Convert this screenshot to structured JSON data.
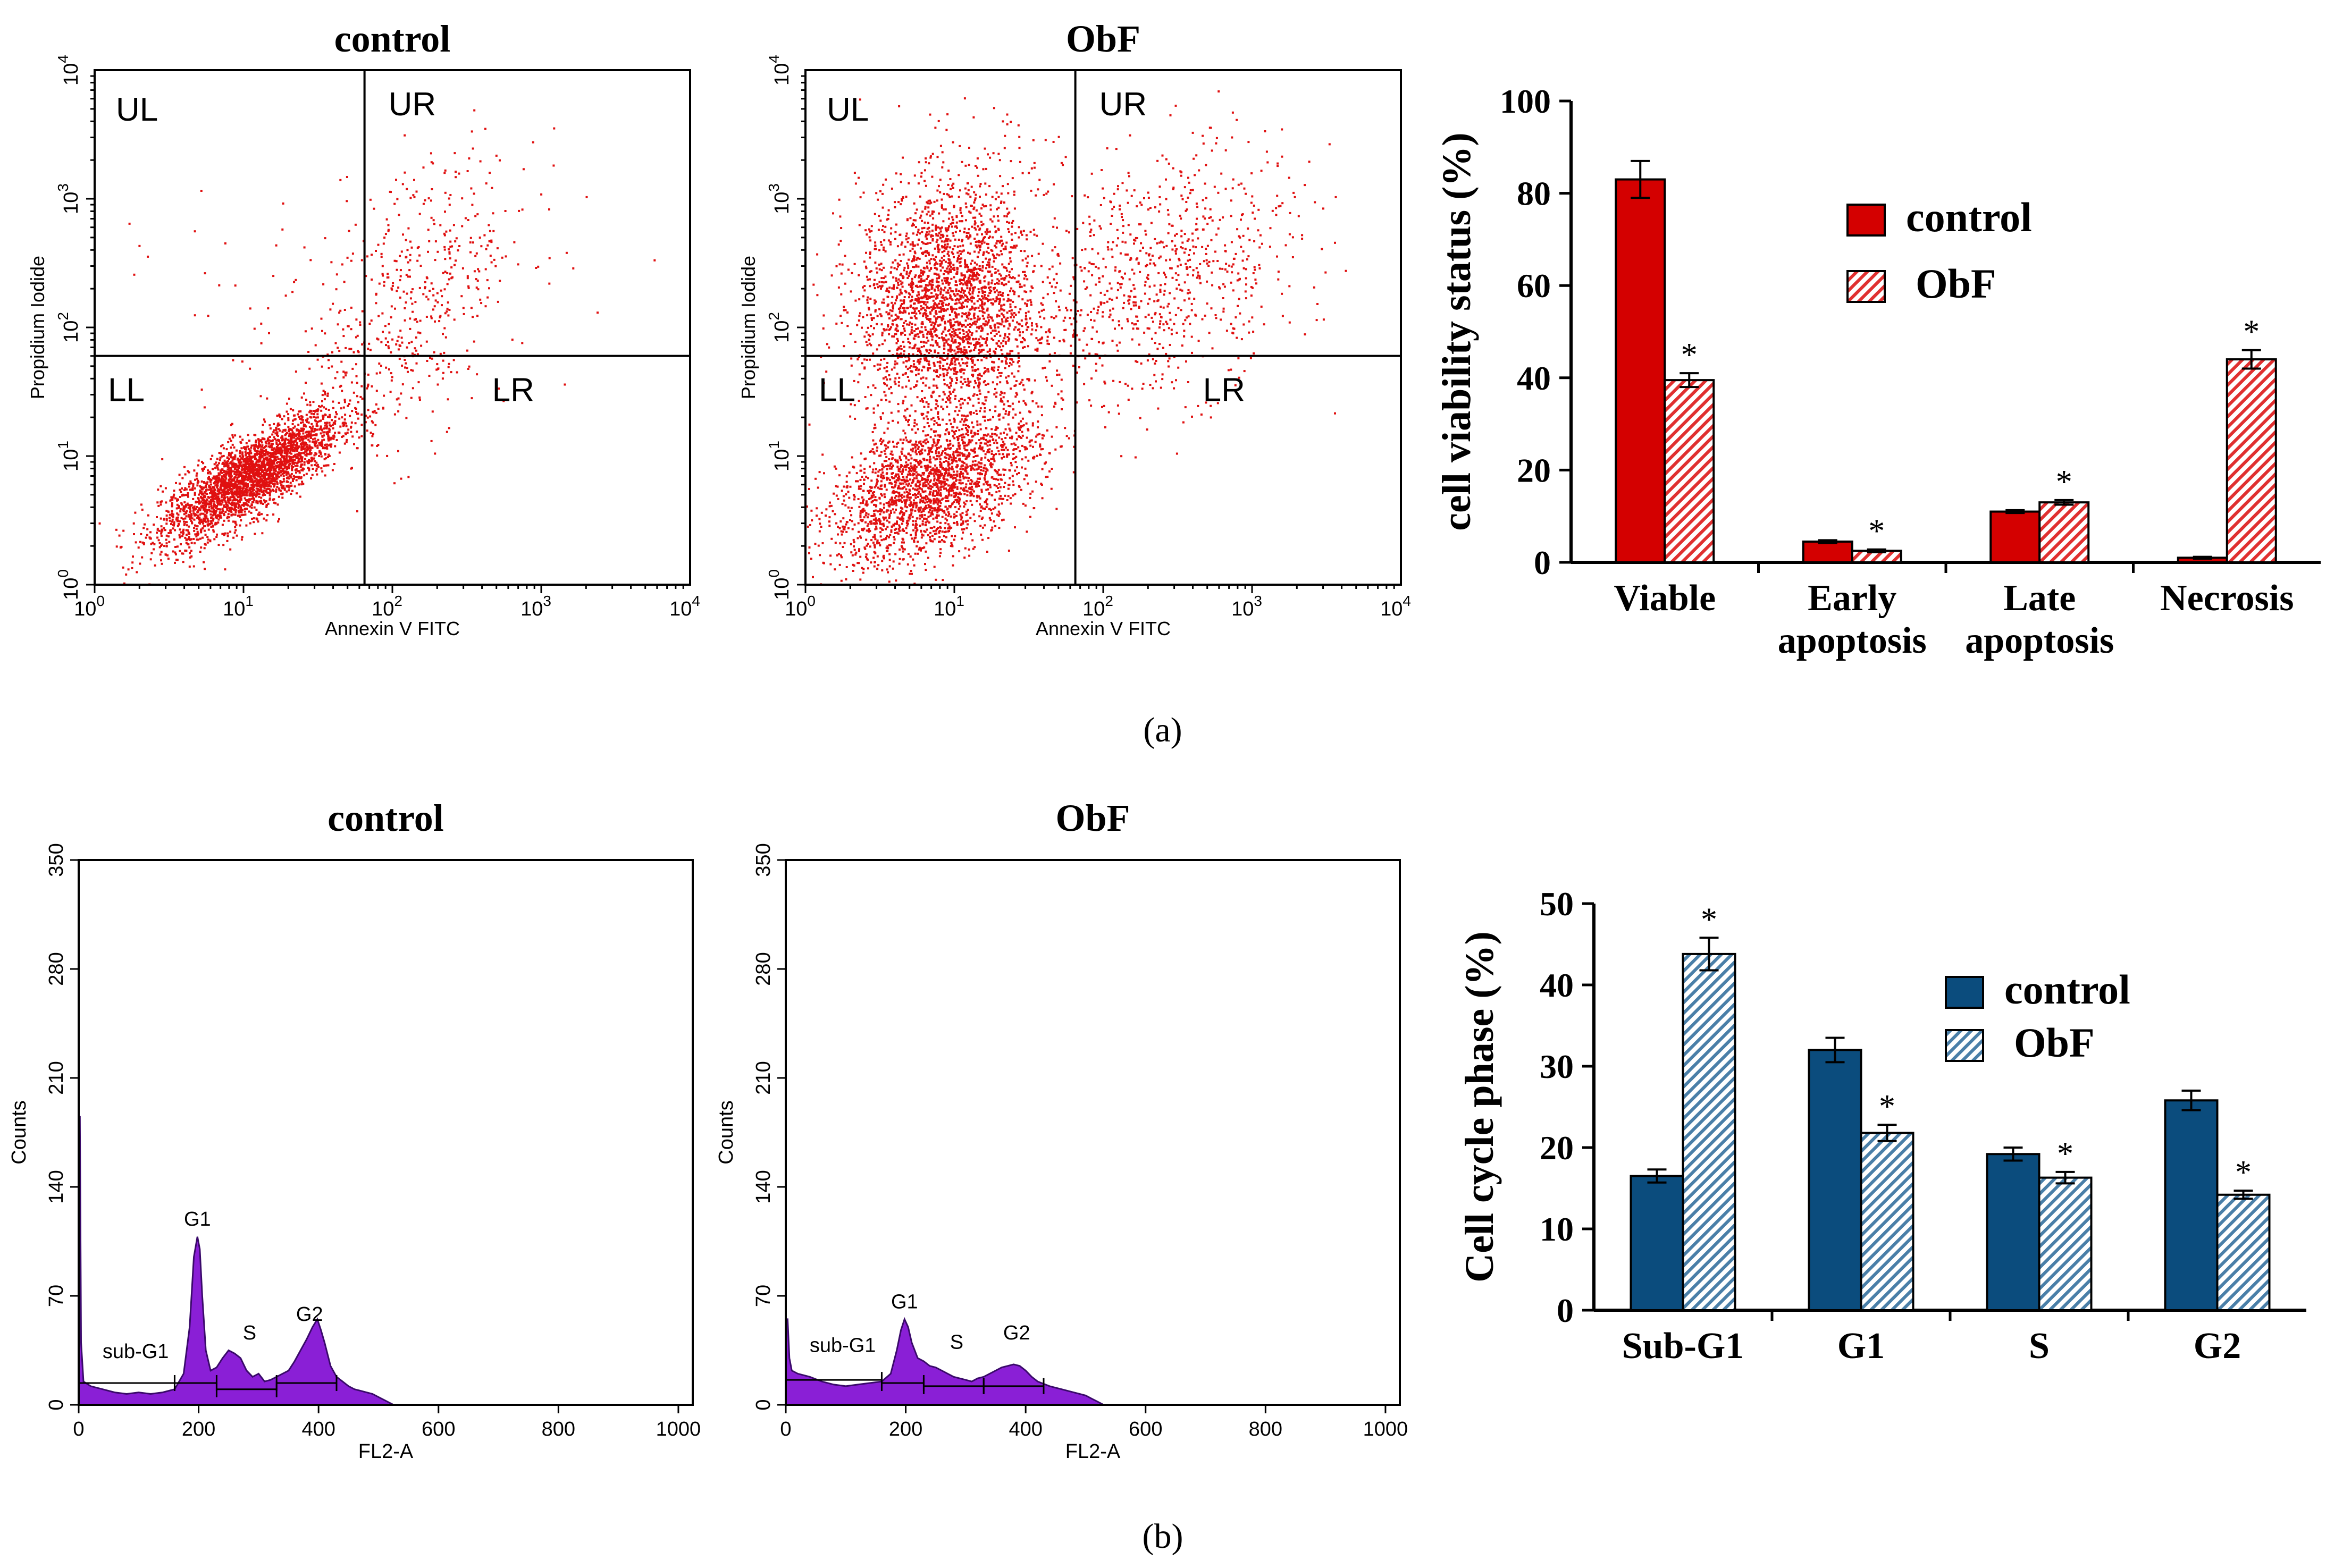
{
  "colors": {
    "scatter_dot": "#e01010",
    "control_red": "#d40000",
    "obf_red_stripe": "#e03030",
    "hist_fill": "#8a1fd6",
    "hist_stroke": "#3a0a6a",
    "control_blue": "#0b4c7d",
    "obf_blue_stripe": "#4a7fa8"
  },
  "panel_labels": {
    "a": "(a)",
    "b": "(b)"
  },
  "chart_data": [
    {
      "id": "flow-control",
      "type": "scatter",
      "title": "control",
      "xlabel": "Annexin V FITC",
      "ylabel": "Propidium Iodide",
      "xscale": "log",
      "yscale": "log",
      "xlim": [
        1,
        10000
      ],
      "ylim": [
        1,
        10000
      ],
      "x_ticks": [
        {
          "base": "10",
          "exp": "0"
        },
        {
          "base": "10",
          "exp": "1"
        },
        {
          "base": "10",
          "exp": "2"
        },
        {
          "base": "10",
          "exp": "3"
        },
        {
          "base": "10",
          "exp": "4"
        }
      ],
      "y_ticks": [
        {
          "base": "10",
          "exp": "0"
        },
        {
          "base": "10",
          "exp": "1"
        },
        {
          "base": "10",
          "exp": "2"
        },
        {
          "base": "10",
          "exp": "3"
        },
        {
          "base": "10",
          "exp": "4"
        }
      ],
      "gate": {
        "x": 65,
        "y": 60
      },
      "quadrants": [
        "UL",
        "UR",
        "LL",
        "LR"
      ],
      "clusters": [
        {
          "cx": 11,
          "cy": 7,
          "sx": 0.3,
          "sy": 0.25,
          "n": 3000,
          "corr": 0.8
        },
        {
          "cx": 180,
          "cy": 350,
          "sx": 0.35,
          "sy": 0.4,
          "n": 300,
          "corr": 0.2
        },
        {
          "cx": 80,
          "cy": 50,
          "sx": 0.35,
          "sy": 0.4,
          "n": 250,
          "corr": 0.3
        },
        {
          "cx": 12,
          "cy": 180,
          "sx": 0.4,
          "sy": 0.4,
          "n": 30,
          "corr": 0
        }
      ]
    },
    {
      "id": "flow-obf",
      "type": "scatter",
      "title": "ObF",
      "xlabel": "Annexin V FITC",
      "ylabel": "Propidium Iodide",
      "xscale": "log",
      "yscale": "log",
      "xlim": [
        1,
        10000
      ],
      "ylim": [
        1,
        10000
      ],
      "x_ticks": [
        {
          "base": "10",
          "exp": "0"
        },
        {
          "base": "10",
          "exp": "1"
        },
        {
          "base": "10",
          "exp": "2"
        },
        {
          "base": "10",
          "exp": "3"
        },
        {
          "base": "10",
          "exp": "4"
        }
      ],
      "y_ticks": [
        {
          "base": "10",
          "exp": "0"
        },
        {
          "base": "10",
          "exp": "1"
        },
        {
          "base": "10",
          "exp": "2"
        },
        {
          "base": "10",
          "exp": "3"
        },
        {
          "base": "10",
          "exp": "4"
        }
      ],
      "gate": {
        "x": 65,
        "y": 60
      },
      "quadrants": [
        "UL",
        "UR",
        "LL",
        "LR"
      ],
      "clusters": [
        {
          "cx": 7,
          "cy": 6,
          "sx": 0.35,
          "sy": 0.3,
          "n": 2200,
          "corr": 0.5
        },
        {
          "cx": 9,
          "cy": 150,
          "sx": 0.3,
          "sy": 0.45,
          "n": 2600,
          "corr": 0
        },
        {
          "cx": 250,
          "cy": 250,
          "sx": 0.45,
          "sy": 0.5,
          "n": 800,
          "corr": 0.3
        },
        {
          "cx": 15,
          "cy": 1800,
          "sx": 0.3,
          "sy": 0.3,
          "n": 80,
          "corr": 0
        }
      ]
    },
    {
      "id": "viability-bar",
      "type": "bar",
      "title": "",
      "ylabel": "cell viability status (%)",
      "xlabel": "",
      "ylim": [
        0,
        100
      ],
      "yticks": [
        "0",
        "20",
        "40",
        "60",
        "80",
        "100"
      ],
      "categories": [
        [
          "Viable"
        ],
        [
          "Early",
          "apoptosis"
        ],
        [
          "Late",
          "apoptosis"
        ],
        [
          "Necrosis"
        ]
      ],
      "series": [
        {
          "name": "control",
          "values": [
            83,
            4.5,
            11,
            1
          ],
          "errors": [
            4,
            0.3,
            0.3,
            0.2
          ],
          "sig": [
            "",
            "",
            "",
            ""
          ]
        },
        {
          "name": "ObF",
          "values": [
            39.5,
            2.5,
            13,
            44
          ],
          "errors": [
            1.5,
            0.3,
            0.5,
            2
          ],
          "sig": [
            "*",
            "*",
            "*",
            "*"
          ]
        }
      ],
      "legend": [
        "control",
        "ObF"
      ],
      "legend_position": "top-right"
    },
    {
      "id": "hist-control",
      "type": "area",
      "title": "control",
      "xlabel": "FL2-A",
      "ylabel": "Counts",
      "xlim": [
        0,
        1024
      ],
      "ylim": [
        0,
        350
      ],
      "xticks": [
        "0",
        "200",
        "400",
        "600",
        "800",
        "1000"
      ],
      "yticks": [
        "0",
        "70",
        "140",
        "210",
        "280",
        "350"
      ],
      "x": [
        0,
        2,
        4,
        8,
        20,
        40,
        60,
        80,
        100,
        120,
        140,
        160,
        175,
        185,
        192,
        198,
        202,
        206,
        212,
        220,
        230,
        240,
        250,
        260,
        270,
        280,
        290,
        300,
        310,
        320,
        330,
        340,
        350,
        360,
        370,
        380,
        390,
        398,
        404,
        410,
        420,
        430,
        440,
        450,
        460,
        470,
        480,
        490,
        500,
        510,
        520,
        525,
        1024
      ],
      "y": [
        185,
        185,
        40,
        15,
        12,
        10,
        8,
        7,
        8,
        7,
        8,
        10,
        20,
        50,
        95,
        108,
        100,
        70,
        35,
        22,
        24,
        30,
        35,
        33,
        30,
        22,
        18,
        20,
        15,
        16,
        18,
        20,
        22,
        28,
        35,
        42,
        50,
        55,
        48,
        40,
        25,
        18,
        15,
        12,
        10,
        9,
        8,
        7,
        5,
        3,
        1,
        0,
        0
      ],
      "markers": [
        {
          "label": "sub-G1",
          "from": 0,
          "to": 160,
          "y": 14
        },
        {
          "label": "G1",
          "from": 160,
          "to": 230,
          "y": 14
        },
        {
          "label": "S",
          "from": 230,
          "to": 330,
          "y": 10
        },
        {
          "label": "G2",
          "from": 330,
          "to": 430,
          "y": 14
        }
      ],
      "peak_labels": [
        {
          "text": "sub-G1",
          "x": 95,
          "y": 30
        },
        {
          "text": "G1",
          "x": 198,
          "y": 115
        },
        {
          "text": "S",
          "x": 285,
          "y": 42
        },
        {
          "text": "G2",
          "x": 385,
          "y": 54
        }
      ]
    },
    {
      "id": "hist-obf",
      "type": "area",
      "title": "ObF",
      "xlabel": "FL2-A",
      "ylabel": "Counts",
      "xlim": [
        0,
        1024
      ],
      "ylim": [
        0,
        350
      ],
      "xticks": [
        "0",
        "200",
        "400",
        "600",
        "800",
        "1000"
      ],
      "yticks": [
        "0",
        "70",
        "140",
        "210",
        "280",
        "350"
      ],
      "x": [
        0,
        3,
        6,
        10,
        20,
        40,
        60,
        80,
        100,
        120,
        140,
        160,
        175,
        185,
        192,
        198,
        204,
        210,
        220,
        230,
        240,
        250,
        260,
        270,
        280,
        290,
        300,
        310,
        320,
        330,
        340,
        350,
        360,
        370,
        380,
        390,
        400,
        410,
        420,
        440,
        460,
        480,
        500,
        510,
        520,
        530,
        1024
      ],
      "y": [
        55,
        55,
        30,
        22,
        20,
        18,
        15,
        13,
        12,
        13,
        14,
        15,
        20,
        35,
        48,
        55,
        50,
        40,
        30,
        28,
        25,
        24,
        22,
        20,
        18,
        17,
        16,
        15,
        17,
        18,
        20,
        22,
        24,
        25,
        26,
        25,
        22,
        18,
        15,
        12,
        10,
        8,
        6,
        4,
        2,
        0,
        0
      ],
      "markers": [
        {
          "label": "sub-G1",
          "from": 0,
          "to": 160,
          "y": 16
        },
        {
          "label": "G1",
          "from": 160,
          "to": 230,
          "y": 14
        },
        {
          "label": "S",
          "from": 230,
          "to": 330,
          "y": 12
        },
        {
          "label": "G2",
          "from": 330,
          "to": 430,
          "y": 12
        }
      ],
      "peak_labels": [
        {
          "text": "sub-G1",
          "x": 95,
          "y": 34
        },
        {
          "text": "G1",
          "x": 198,
          "y": 62
        },
        {
          "text": "S",
          "x": 285,
          "y": 36
        },
        {
          "text": "G2",
          "x": 385,
          "y": 42
        }
      ]
    },
    {
      "id": "cellcycle-bar",
      "type": "bar",
      "title": "",
      "ylabel": "Cell cycle phase (%)",
      "xlabel": "",
      "ylim": [
        0,
        50
      ],
      "yticks": [
        "0",
        "10",
        "20",
        "30",
        "40",
        "50"
      ],
      "categories": [
        [
          "Sub-G1"
        ],
        [
          "G1"
        ],
        [
          "S"
        ],
        [
          "G2"
        ]
      ],
      "series": [
        {
          "name": "control",
          "values": [
            16.5,
            32,
            19.2,
            25.8
          ],
          "errors": [
            0.8,
            1.5,
            0.8,
            1.2
          ],
          "sig": [
            "",
            "",
            "",
            ""
          ]
        },
        {
          "name": "ObF",
          "values": [
            43.8,
            21.8,
            16.3,
            14.2
          ],
          "errors": [
            2,
            1,
            0.7,
            0.5
          ],
          "sig": [
            "*",
            "*",
            "*",
            "*"
          ]
        }
      ],
      "legend": [
        "control",
        "ObF"
      ],
      "legend_position": "top-right"
    }
  ]
}
